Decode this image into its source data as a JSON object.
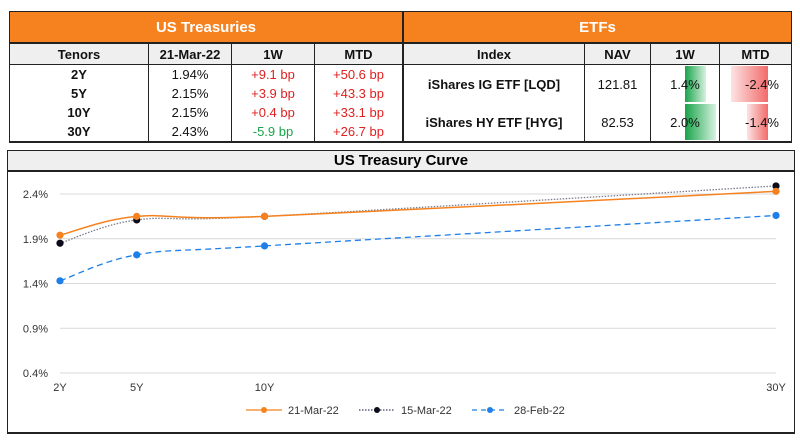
{
  "treasuries": {
    "title": "US Treasuries",
    "headers": [
      "Tenors",
      "21-Mar-22",
      "1W",
      "MTD"
    ],
    "rows": [
      {
        "tenor": "2Y",
        "yield": "1.94%",
        "w1": "+9.1 bp",
        "mtd": "+50.6 bp",
        "w1_dir": "up"
      },
      {
        "tenor": "5Y",
        "yield": "2.15%",
        "w1": "+3.9 bp",
        "mtd": "+43.3 bp",
        "w1_dir": "up"
      },
      {
        "tenor": "10Y",
        "yield": "2.15%",
        "w1": "+0.4 bp",
        "mtd": "+33.1 bp",
        "w1_dir": "up"
      },
      {
        "tenor": "30Y",
        "yield": "2.43%",
        "w1": "-5.9 bp",
        "mtd": "+26.7 bp",
        "w1_dir": "down"
      }
    ]
  },
  "etfs": {
    "title": "ETFs",
    "headers": [
      "Index",
      "NAV",
      "1W",
      "MTD"
    ],
    "rows": [
      {
        "index": "iShares IG ETF [LQD]",
        "nav": "121.81",
        "w1": "1.4%",
        "w1_value": 1.4,
        "mtd": "-2.4%",
        "mtd_value": -2.4
      },
      {
        "index": "iShares HY ETF [HYG]",
        "nav": "82.53",
        "w1": "2.0%",
        "w1_value": 2.0,
        "mtd": "-1.4%",
        "mtd_value": -1.4
      }
    ],
    "colors": {
      "positive": "#19a34a",
      "negative": "#f26b6b"
    }
  },
  "chart_data": {
    "type": "line",
    "title": "US Treasury Curve",
    "xlabel": "",
    "ylabel": "",
    "x": [
      "2Y",
      "5Y",
      "10Y",
      "30Y"
    ],
    "x_numeric": [
      2,
      5,
      10,
      30
    ],
    "yticks": [
      "0.4%",
      "0.9%",
      "1.4%",
      "1.9%",
      "2.4%"
    ],
    "ytick_values": [
      0.4,
      0.9,
      1.4,
      1.9,
      2.4
    ],
    "ylim": [
      0.4,
      2.4
    ],
    "grid": true,
    "legend_position": "bottom",
    "series": [
      {
        "name": "21-Mar-22",
        "values": [
          1.94,
          2.15,
          2.15,
          2.43
        ],
        "color": "#f5821f",
        "style": "solid"
      },
      {
        "name": "15-Mar-22",
        "values": [
          1.85,
          2.11,
          2.15,
          2.49
        ],
        "color": "#0b0b1a",
        "style": "dotted"
      },
      {
        "name": "28-Feb-22",
        "values": [
          1.43,
          1.72,
          1.82,
          2.16
        ],
        "color": "#1e7fe8",
        "style": "dashed"
      }
    ]
  }
}
